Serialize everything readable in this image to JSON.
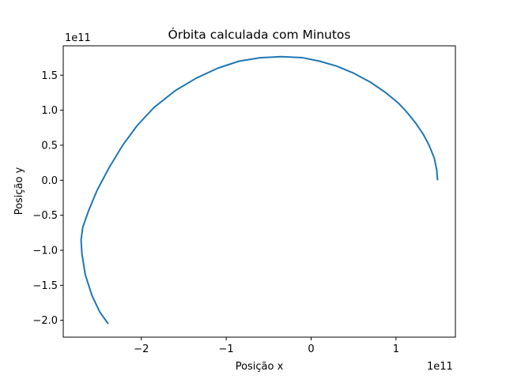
{
  "chart_data": {
    "type": "line",
    "title": "Órbita calculada com Minutos",
    "xlabel": "Posição x",
    "ylabel": "Posição y",
    "x_offset_label": "1e11",
    "y_offset_label": "1e11",
    "xlim": [
      -2.92,
      1.7
    ],
    "ylim": [
      -2.24,
      1.92
    ],
    "x_ticks": [
      {
        "value": -2,
        "label": "−2"
      },
      {
        "value": -1,
        "label": "−1"
      },
      {
        "value": 0,
        "label": "0"
      },
      {
        "value": 1,
        "label": "1"
      }
    ],
    "y_ticks": [
      {
        "value": -2.0,
        "label": "−2.0"
      },
      {
        "value": -1.5,
        "label": "−1.5"
      },
      {
        "value": -1.0,
        "label": "−1.0"
      },
      {
        "value": -0.5,
        "label": "−0.5"
      },
      {
        "value": 0.0,
        "label": "0.0"
      },
      {
        "value": 0.5,
        "label": "0.5"
      },
      {
        "value": 1.0,
        "label": "1.0"
      },
      {
        "value": 1.5,
        "label": "1.5"
      }
    ],
    "grid": false,
    "series": [
      {
        "color": "#1f77b4",
        "x": [
          1.49,
          1.48,
          1.45,
          1.39,
          1.32,
          1.23,
          1.13,
          1.03,
          0.88,
          0.7,
          0.5,
          0.3,
          0.1,
          -0.1,
          -0.35,
          -0.6,
          -0.85,
          -1.1,
          -1.35,
          -1.6,
          -1.85,
          -2.05,
          -2.22,
          -2.38,
          -2.52,
          -2.62,
          -2.69,
          -2.71,
          -2.7,
          -2.66,
          -2.58,
          -2.49,
          -2.39
        ],
        "y": [
          0.0,
          0.15,
          0.32,
          0.5,
          0.66,
          0.82,
          0.97,
          1.1,
          1.25,
          1.4,
          1.53,
          1.63,
          1.7,
          1.75,
          1.765,
          1.75,
          1.7,
          1.6,
          1.46,
          1.28,
          1.04,
          0.78,
          0.5,
          0.18,
          -0.14,
          -0.43,
          -0.67,
          -0.85,
          -1.05,
          -1.35,
          -1.65,
          -1.88,
          -2.05
        ]
      }
    ]
  }
}
